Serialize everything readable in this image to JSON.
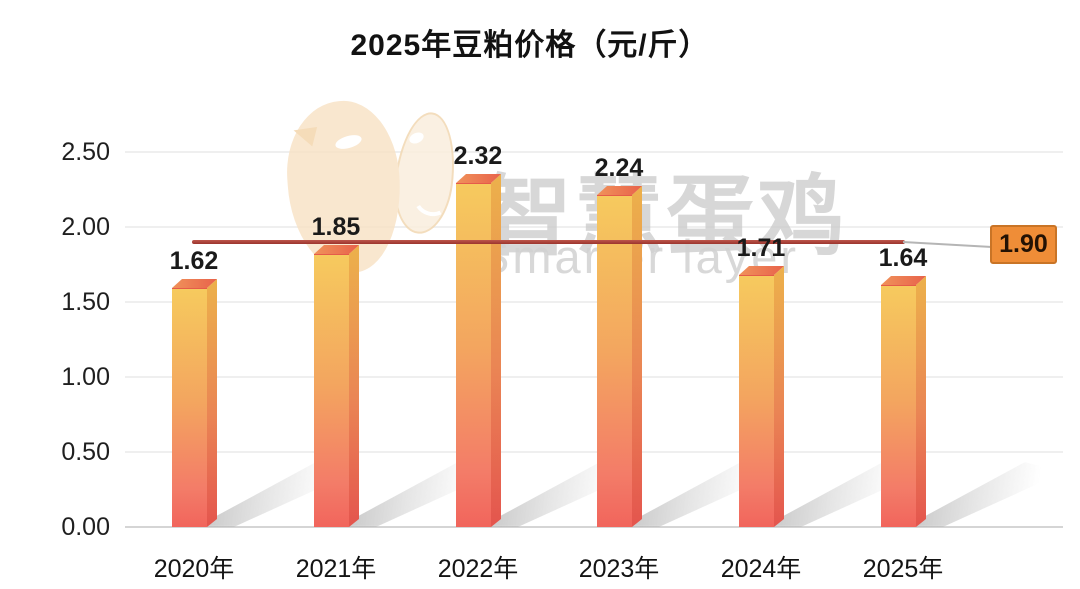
{
  "title": "2025年豆粕价格（元/斤）",
  "watermark": {
    "logo_icon": "chick-and-egg-logo",
    "text_cn": "智慧蛋鸡",
    "text_en": "Smarter layer"
  },
  "chart_data": {
    "type": "bar",
    "title": "2025年豆粕价格（元/斤）",
    "categories": [
      "2020年",
      "2021年",
      "2022年",
      "2023年",
      "2024年",
      "2025年"
    ],
    "values": [
      1.62,
      1.85,
      2.32,
      2.24,
      1.71,
      1.64
    ],
    "bar_value_labels": [
      "1.62",
      "1.85",
      "2.32",
      "2.24",
      "1.71",
      "1.64"
    ],
    "xlabel": "",
    "ylabel": "",
    "ylim": [
      0,
      2.5
    ],
    "ytick_labels": [
      "0.00",
      "0.50",
      "1.00",
      "1.50",
      "2.00",
      "2.50"
    ],
    "ytick_step": 0.5,
    "grid": true,
    "legend": false,
    "reference_line": {
      "value": 1.9,
      "label": "1.90"
    },
    "colors": {
      "bar_gradient_top": "#f6ca5e",
      "bar_gradient_mid": "#f3a55f",
      "bar_gradient_bottom": "#f1655c",
      "bar_side": "#e4554e",
      "bar_top_face": "#e8624b",
      "reference_line": "#9c352d",
      "reference_label_bg": "#ef8d37",
      "reference_label_border": "#c97426",
      "watermark_gray": "#c9c9c9",
      "watermark_peach": "#f8e3c7"
    }
  }
}
